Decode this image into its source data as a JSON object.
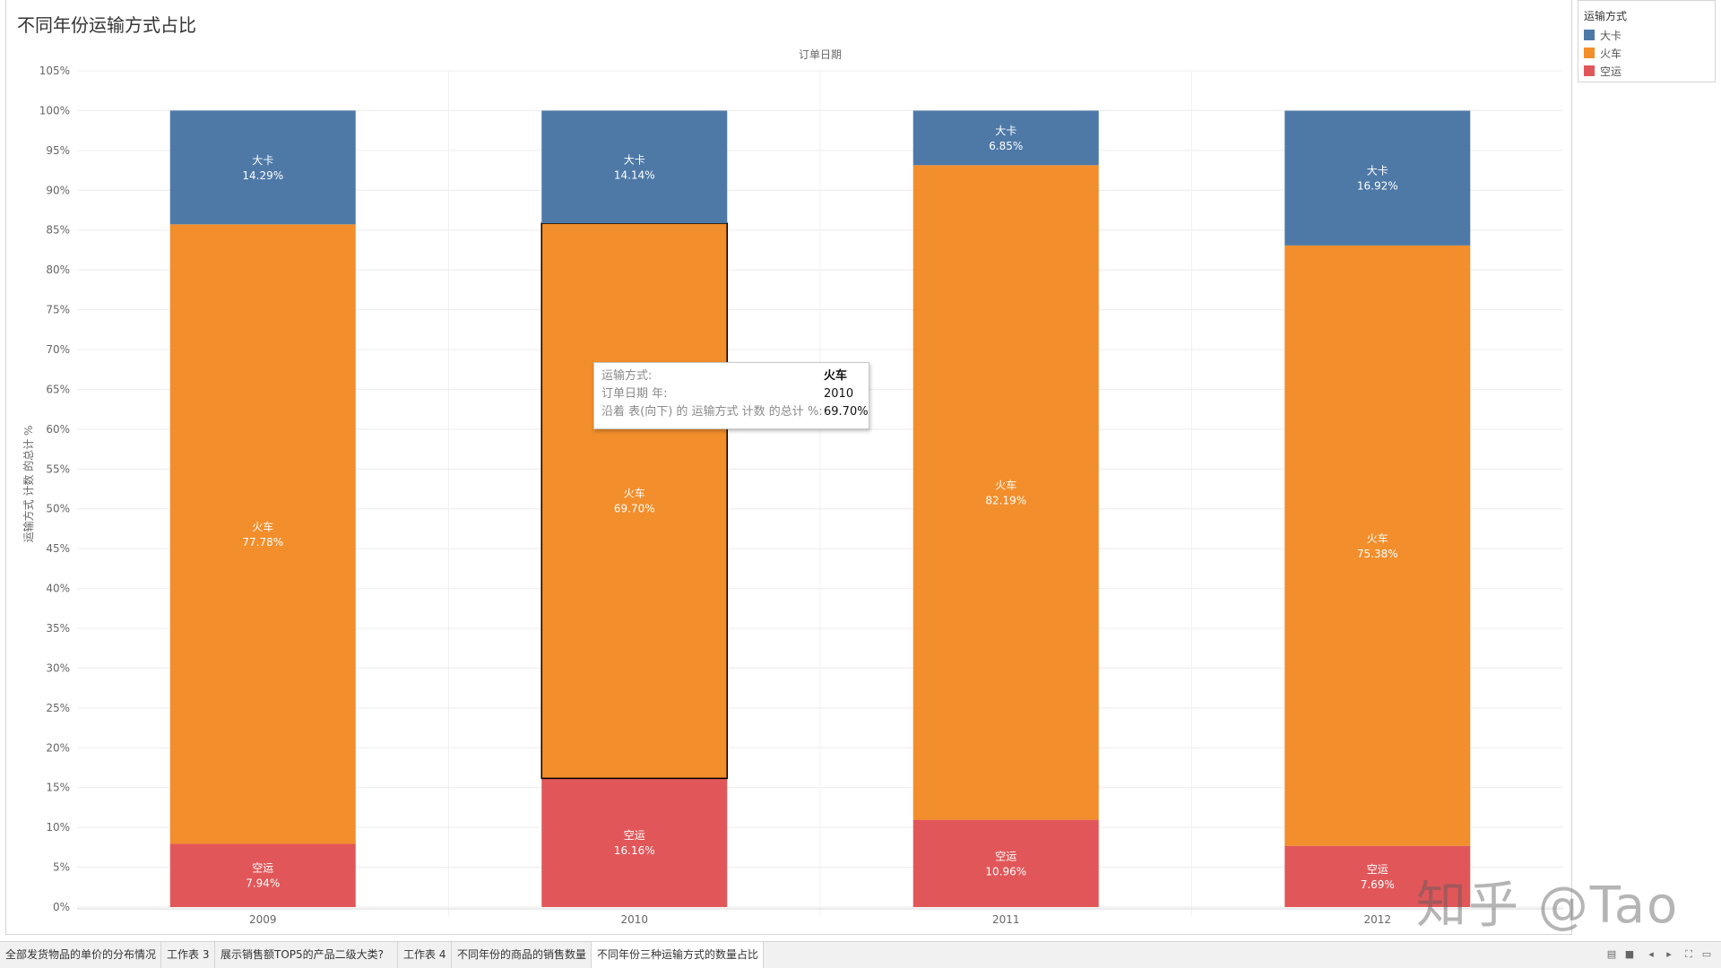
{
  "sheet_title": "不同年份运输方式占比",
  "legend": {
    "title": "运输方式",
    "items": [
      {
        "label": "大卡",
        "color": "#4e79a7"
      },
      {
        "label": "火车",
        "color": "#f28e2b"
      },
      {
        "label": "空运",
        "color": "#e15759"
      }
    ]
  },
  "chart_data": {
    "type": "bar",
    "stacked": true,
    "title": "不同年份运输方式占比",
    "column_header": "订单日期",
    "ylabel": "运输方式 计数 的总计 %",
    "categories": [
      "2009",
      "2010",
      "2011",
      "2012"
    ],
    "y_ticks": [
      "0%",
      "5%",
      "10%",
      "15%",
      "20%",
      "25%",
      "30%",
      "35%",
      "40%",
      "45%",
      "50%",
      "55%",
      "60%",
      "65%",
      "70%",
      "75%",
      "80%",
      "85%",
      "90%",
      "95%",
      "100%",
      "105%"
    ],
    "ylim": [
      0,
      105
    ],
    "series": [
      {
        "name": "空运",
        "color": "#e15759",
        "values": [
          7.94,
          16.16,
          10.96,
          7.69
        ],
        "labels": [
          "7.94%",
          "16.16%",
          "10.96%",
          "7.69%"
        ]
      },
      {
        "name": "火车",
        "color": "#f28e2b",
        "values": [
          77.78,
          69.7,
          82.19,
          75.38
        ],
        "labels": [
          "77.78%",
          "69.70%",
          "82.19%",
          "75.38%"
        ]
      },
      {
        "name": "大卡",
        "color": "#4e79a7",
        "values": [
          14.29,
          14.14,
          6.85,
          16.92
        ],
        "labels": [
          "14.29%",
          "14.14%",
          "6.85%",
          "16.92%"
        ]
      }
    ],
    "grid": true,
    "legend_position": "top-right"
  },
  "tooltip": {
    "rows": [
      {
        "label": "运输方式:",
        "value": "火车"
      },
      {
        "label": "订单日期 年:",
        "value": "2010"
      },
      {
        "label": "沿着 表(向下) 的 运输方式 计数 的总计 %:",
        "value": "69.70%"
      }
    ]
  },
  "tabs": [
    "全部发货物品的单价的分布情况",
    "工作表 3",
    "展示销售额TOP5的产品二级大类?",
    "工作表 4",
    "不同年份的商品的销售数量",
    "不同年份三种运输方式的数量占比"
  ],
  "active_tab": 5,
  "watermark": "知乎 @Tao"
}
